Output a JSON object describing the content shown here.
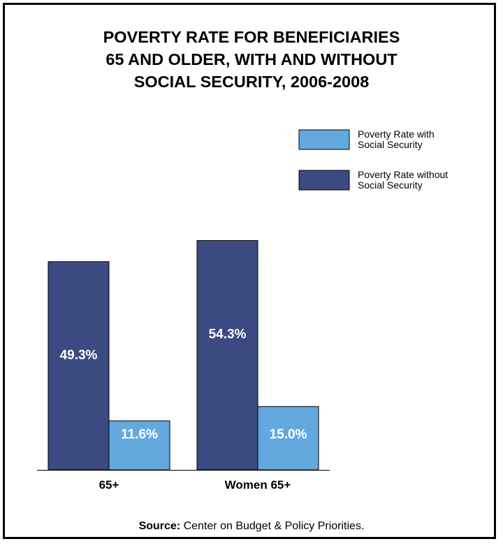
{
  "chart_data": {
    "type": "bar",
    "title_lines": [
      "POVERTY RATE FOR BENEFICIARIES",
      "65 AND OLDER, WITH AND WITHOUT",
      "SOCIAL SECURITY, 2006-2008"
    ],
    "categories": [
      "65+",
      "Women 65+"
    ],
    "series": [
      {
        "name": "Poverty Rate without Social Security",
        "values": [
          49.3,
          54.3
        ],
        "labels": [
          "49.3%",
          "54.3%"
        ],
        "color": "#3c4a82"
      },
      {
        "name": "Poverty Rate with Social Security",
        "values": [
          11.6,
          15.0
        ],
        "labels": [
          "11.6%",
          "15.0%"
        ],
        "color": "#63a9dd"
      }
    ],
    "legend_order": [
      1,
      0
    ],
    "legend_lines": [
      [
        "Poverty Rate with",
        "Social Security"
      ],
      [
        "Poverty Rate without",
        "Social Security"
      ]
    ],
    "legend_position": "top-right",
    "ylim": [
      0,
      100
    ],
    "grid": false
  },
  "source": {
    "label": "Source:",
    "text": "Center on Budget & Policy Priorities."
  }
}
